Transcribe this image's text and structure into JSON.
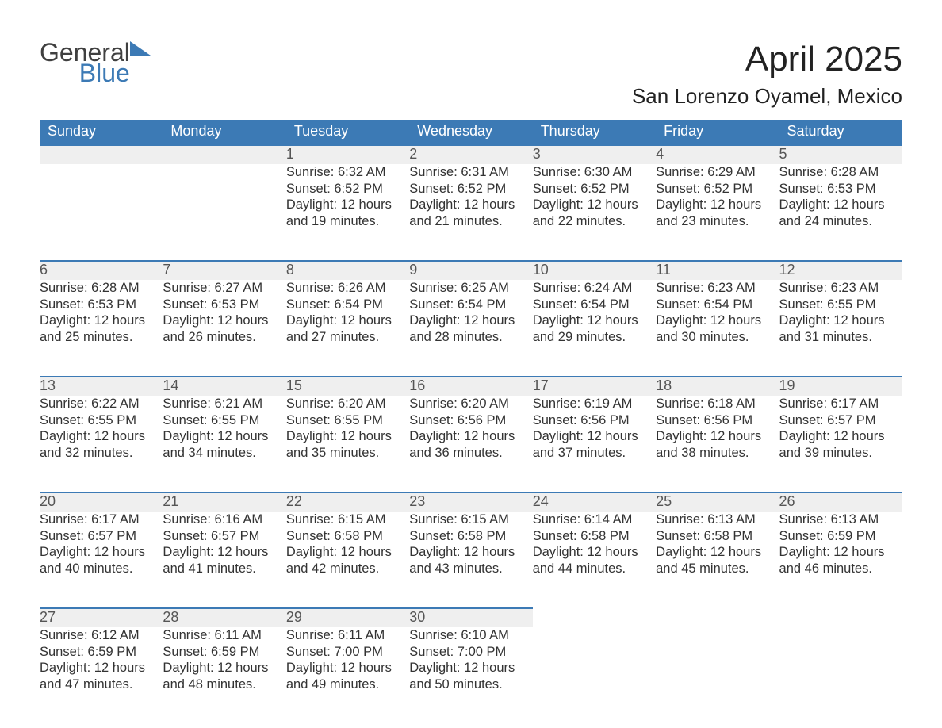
{
  "brand": {
    "line1": "General",
    "line2": "Blue"
  },
  "title": "April 2025",
  "location": "San Lorenzo Oyamel, Mexico",
  "colors": {
    "header_bg": "#3c7ab5",
    "band_bg": "#efefef",
    "band_rule": "#3c7ab5",
    "text": "#303030",
    "header_text": "#ffffff",
    "page_bg": "#ffffff"
  },
  "typography": {
    "title_fontsize": 44,
    "location_fontsize": 26,
    "header_fontsize": 18,
    "daynum_fontsize": 18,
    "body_fontsize": 16.5
  },
  "columns": [
    "Sunday",
    "Monday",
    "Tuesday",
    "Wednesday",
    "Thursday",
    "Friday",
    "Saturday"
  ],
  "weeks": [
    [
      null,
      null,
      {
        "n": "1",
        "sunrise": "6:32 AM",
        "sunset": "6:52 PM",
        "daylight": "12 hours and 19 minutes."
      },
      {
        "n": "2",
        "sunrise": "6:31 AM",
        "sunset": "6:52 PM",
        "daylight": "12 hours and 21 minutes."
      },
      {
        "n": "3",
        "sunrise": "6:30 AM",
        "sunset": "6:52 PM",
        "daylight": "12 hours and 22 minutes."
      },
      {
        "n": "4",
        "sunrise": "6:29 AM",
        "sunset": "6:52 PM",
        "daylight": "12 hours and 23 minutes."
      },
      {
        "n": "5",
        "sunrise": "6:28 AM",
        "sunset": "6:53 PM",
        "daylight": "12 hours and 24 minutes."
      }
    ],
    [
      {
        "n": "6",
        "sunrise": "6:28 AM",
        "sunset": "6:53 PM",
        "daylight": "12 hours and 25 minutes."
      },
      {
        "n": "7",
        "sunrise": "6:27 AM",
        "sunset": "6:53 PM",
        "daylight": "12 hours and 26 minutes."
      },
      {
        "n": "8",
        "sunrise": "6:26 AM",
        "sunset": "6:54 PM",
        "daylight": "12 hours and 27 minutes."
      },
      {
        "n": "9",
        "sunrise": "6:25 AM",
        "sunset": "6:54 PM",
        "daylight": "12 hours and 28 minutes."
      },
      {
        "n": "10",
        "sunrise": "6:24 AM",
        "sunset": "6:54 PM",
        "daylight": "12 hours and 29 minutes."
      },
      {
        "n": "11",
        "sunrise": "6:23 AM",
        "sunset": "6:54 PM",
        "daylight": "12 hours and 30 minutes."
      },
      {
        "n": "12",
        "sunrise": "6:23 AM",
        "sunset": "6:55 PM",
        "daylight": "12 hours and 31 minutes."
      }
    ],
    [
      {
        "n": "13",
        "sunrise": "6:22 AM",
        "sunset": "6:55 PM",
        "daylight": "12 hours and 32 minutes."
      },
      {
        "n": "14",
        "sunrise": "6:21 AM",
        "sunset": "6:55 PM",
        "daylight": "12 hours and 34 minutes."
      },
      {
        "n": "15",
        "sunrise": "6:20 AM",
        "sunset": "6:55 PM",
        "daylight": "12 hours and 35 minutes."
      },
      {
        "n": "16",
        "sunrise": "6:20 AM",
        "sunset": "6:56 PM",
        "daylight": "12 hours and 36 minutes."
      },
      {
        "n": "17",
        "sunrise": "6:19 AM",
        "sunset": "6:56 PM",
        "daylight": "12 hours and 37 minutes."
      },
      {
        "n": "18",
        "sunrise": "6:18 AM",
        "sunset": "6:56 PM",
        "daylight": "12 hours and 38 minutes."
      },
      {
        "n": "19",
        "sunrise": "6:17 AM",
        "sunset": "6:57 PM",
        "daylight": "12 hours and 39 minutes."
      }
    ],
    [
      {
        "n": "20",
        "sunrise": "6:17 AM",
        "sunset": "6:57 PM",
        "daylight": "12 hours and 40 minutes."
      },
      {
        "n": "21",
        "sunrise": "6:16 AM",
        "sunset": "6:57 PM",
        "daylight": "12 hours and 41 minutes."
      },
      {
        "n": "22",
        "sunrise": "6:15 AM",
        "sunset": "6:58 PM",
        "daylight": "12 hours and 42 minutes."
      },
      {
        "n": "23",
        "sunrise": "6:15 AM",
        "sunset": "6:58 PM",
        "daylight": "12 hours and 43 minutes."
      },
      {
        "n": "24",
        "sunrise": "6:14 AM",
        "sunset": "6:58 PM",
        "daylight": "12 hours and 44 minutes."
      },
      {
        "n": "25",
        "sunrise": "6:13 AM",
        "sunset": "6:58 PM",
        "daylight": "12 hours and 45 minutes."
      },
      {
        "n": "26",
        "sunrise": "6:13 AM",
        "sunset": "6:59 PM",
        "daylight": "12 hours and 46 minutes."
      }
    ],
    [
      {
        "n": "27",
        "sunrise": "6:12 AM",
        "sunset": "6:59 PM",
        "daylight": "12 hours and 47 minutes."
      },
      {
        "n": "28",
        "sunrise": "6:11 AM",
        "sunset": "6:59 PM",
        "daylight": "12 hours and 48 minutes."
      },
      {
        "n": "29",
        "sunrise": "6:11 AM",
        "sunset": "7:00 PM",
        "daylight": "12 hours and 49 minutes."
      },
      {
        "n": "30",
        "sunrise": "6:10 AM",
        "sunset": "7:00 PM",
        "daylight": "12 hours and 50 minutes."
      },
      null,
      null,
      null
    ]
  ],
  "labels": {
    "sunrise": "Sunrise:",
    "sunset": "Sunset:",
    "daylight": "Daylight:"
  }
}
